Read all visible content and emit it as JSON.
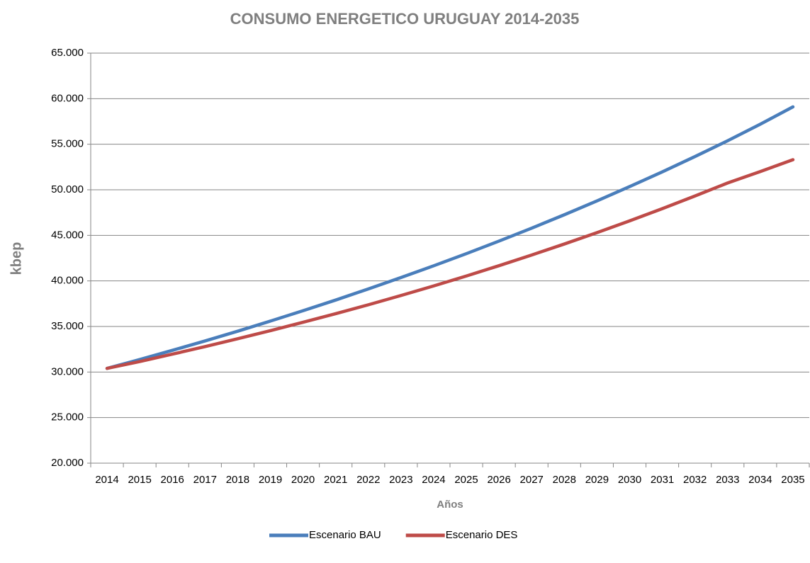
{
  "chart_data": {
    "type": "line",
    "title": "CONSUMO ENERGETICO URUGUAY 2014-2035",
    "x_label": "Años",
    "y_label": "kbep",
    "categories": [
      "2014",
      "2015",
      "2016",
      "2017",
      "2018",
      "2019",
      "2020",
      "2021",
      "2022",
      "2023",
      "2024",
      "2025",
      "2026",
      "2027",
      "2028",
      "2029",
      "2030",
      "2031",
      "2032",
      "2033",
      "2034",
      "2035"
    ],
    "series": [
      {
        "name": "Escenario BAU",
        "color": "#4a7ebb",
        "values": [
          30400,
          31370,
          32380,
          33410,
          34480,
          35590,
          36730,
          37900,
          39120,
          40370,
          41660,
          42990,
          44370,
          45790,
          47260,
          48780,
          50350,
          51970,
          53650,
          55380,
          57200,
          59100
        ]
      },
      {
        "name": "Escenario DES",
        "color": "#be4b48",
        "values": [
          30400,
          31150,
          31960,
          32790,
          33650,
          34540,
          35460,
          36400,
          37380,
          38400,
          39450,
          40540,
          41670,
          42840,
          44050,
          45300,
          46590,
          47930,
          49320,
          50750,
          52000,
          53300
        ]
      }
    ],
    "ylim": [
      20000,
      65000
    ],
    "yticks": [
      {
        "value": 20000,
        "label": "20.000"
      },
      {
        "value": 25000,
        "label": "25.000"
      },
      {
        "value": 30000,
        "label": "30.000"
      },
      {
        "value": 35000,
        "label": "35.000"
      },
      {
        "value": 40000,
        "label": "40.000"
      },
      {
        "value": 45000,
        "label": "45.000"
      },
      {
        "value": 50000,
        "label": "50.000"
      },
      {
        "value": 55000,
        "label": "55.000"
      },
      {
        "value": 60000,
        "label": "60.000"
      },
      {
        "value": 65000,
        "label": "65.000"
      }
    ],
    "grid": true,
    "legend": "bottom"
  }
}
